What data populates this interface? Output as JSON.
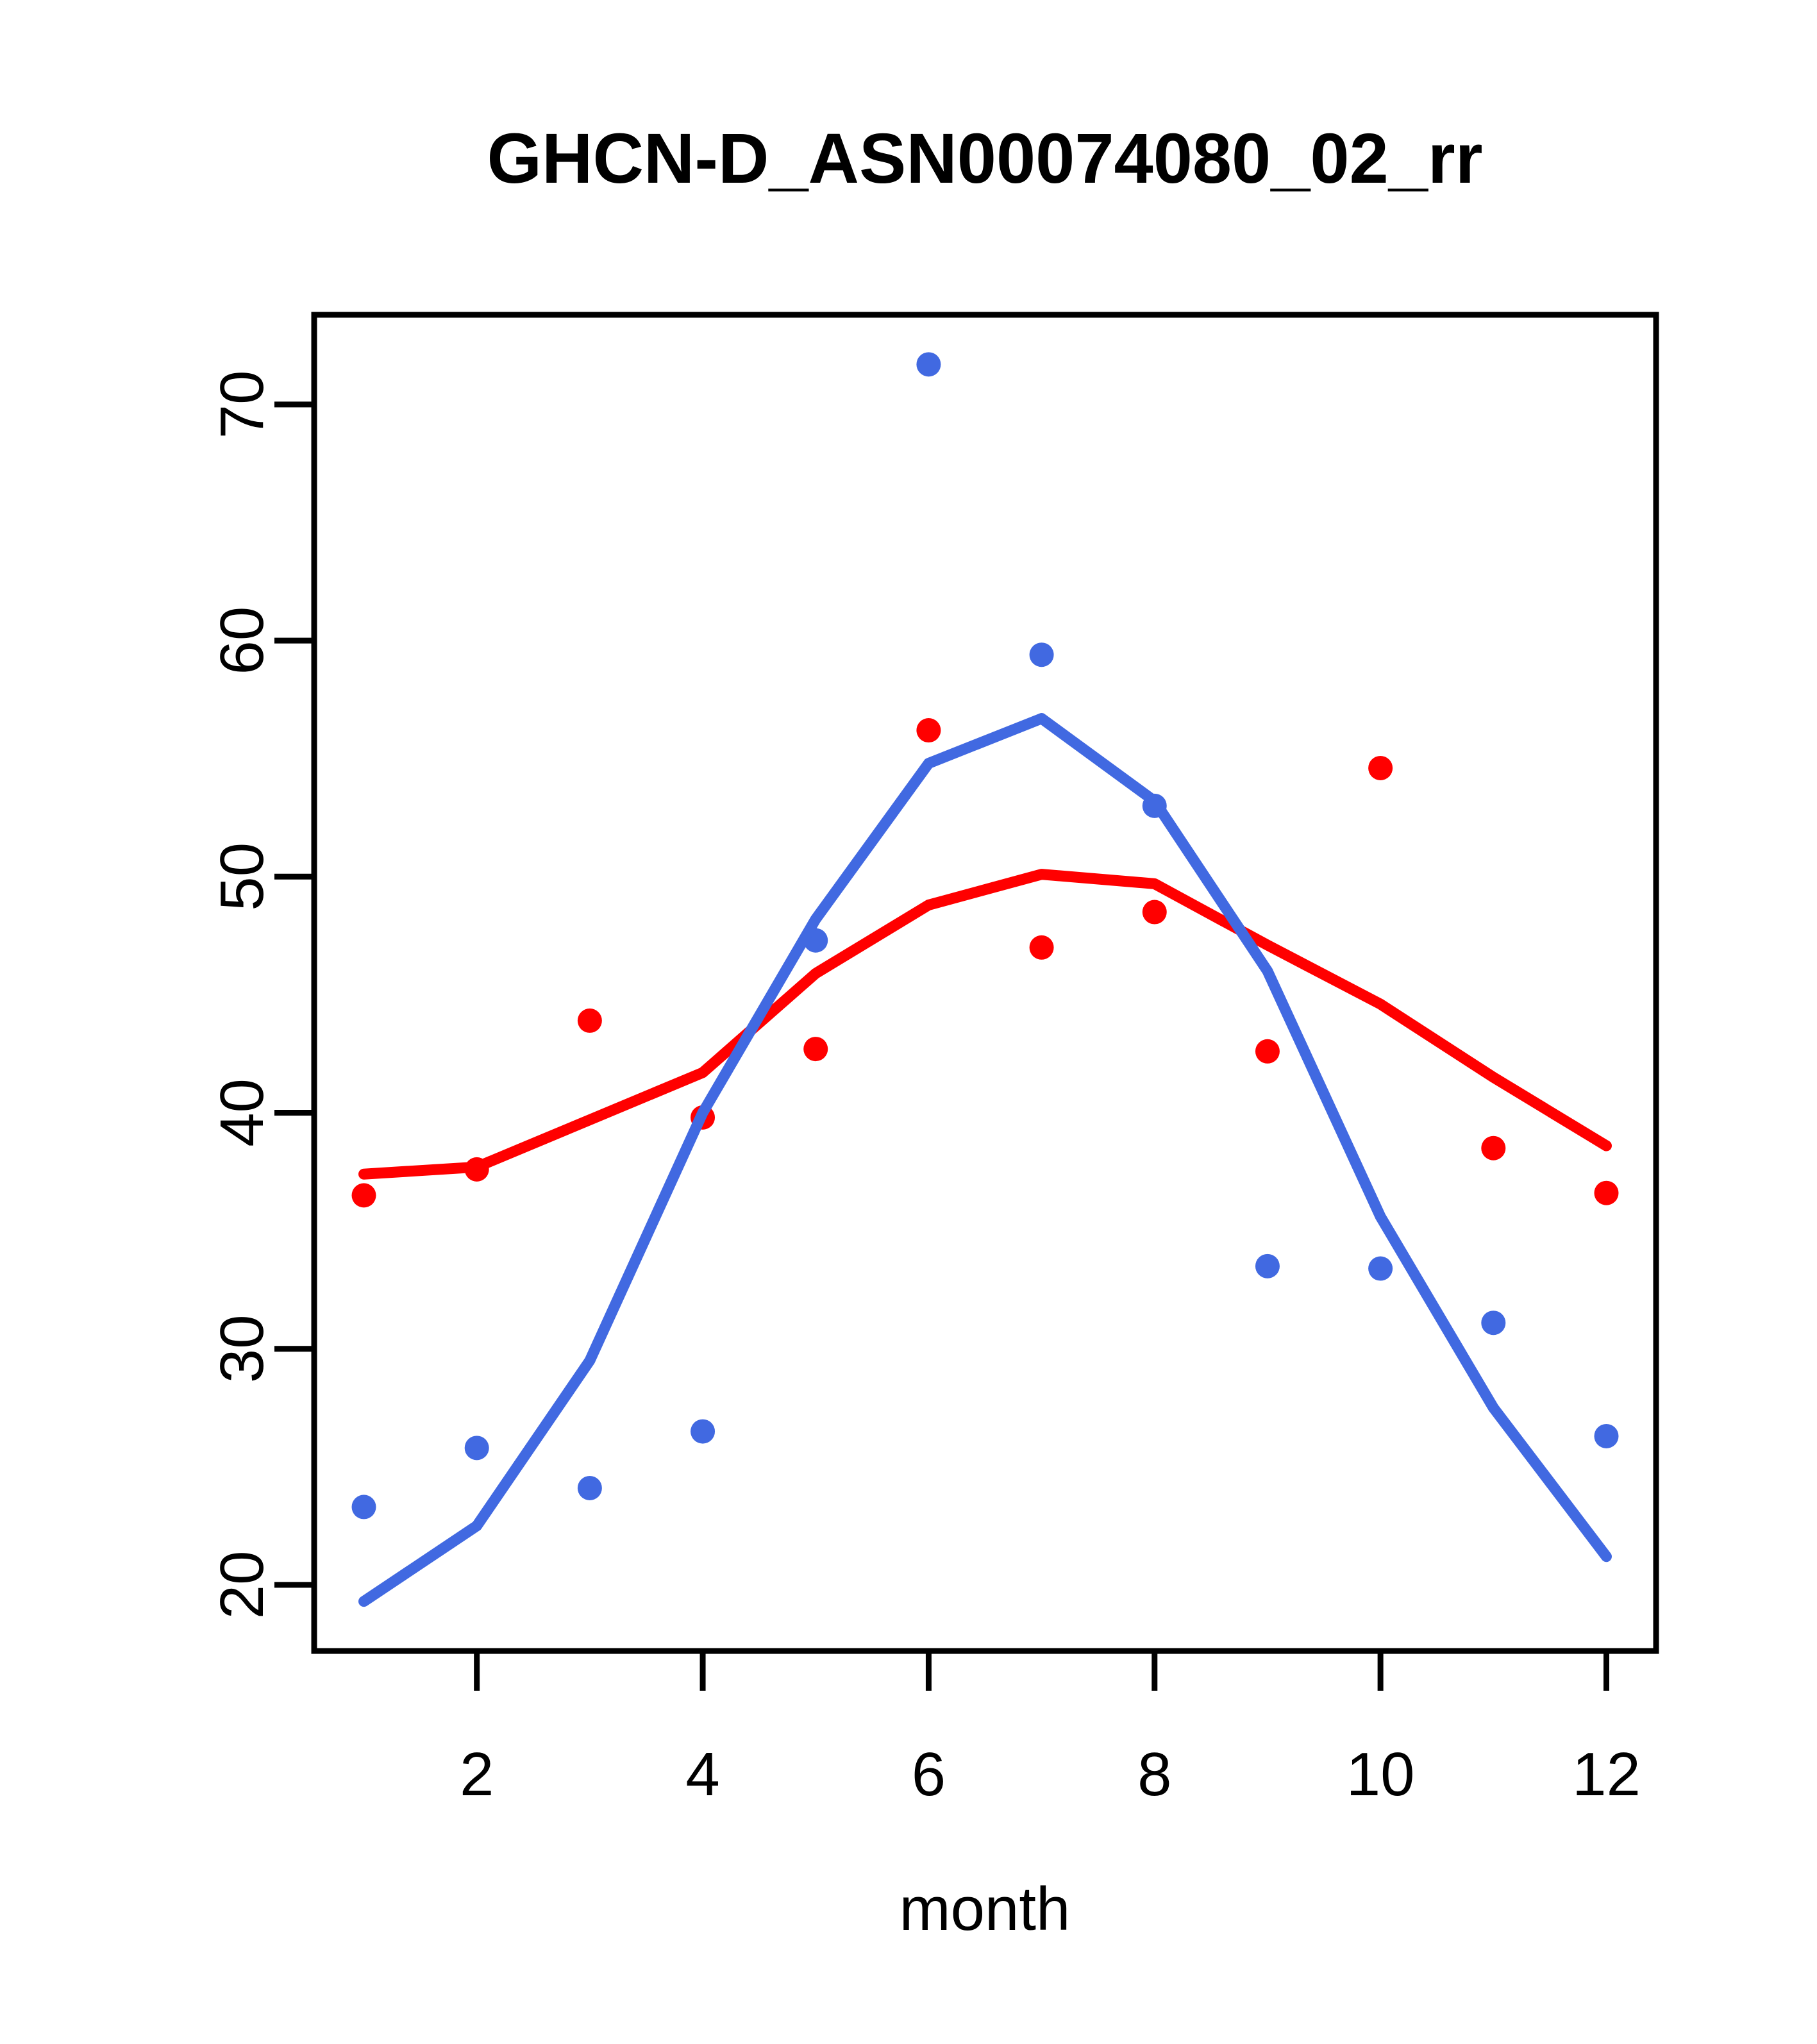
{
  "figure": {
    "background": "#ffffff"
  },
  "chart_data": {
    "type": "scatter",
    "title": "GHCN-D_ASN00074080_02_rr",
    "xlabel": "month",
    "ylabel": "",
    "grid": false,
    "legend": "none",
    "x_ticks": [
      2,
      4,
      6,
      8,
      10,
      12
    ],
    "y_ticks": [
      20,
      30,
      40,
      50,
      60,
      70
    ],
    "x_range": [
      0.56,
      12.44
    ],
    "y_range": [
      17.2,
      73.8
    ],
    "x": [
      1,
      2,
      3,
      4,
      5,
      6,
      7,
      8,
      9,
      10,
      11,
      12
    ],
    "series": [
      {
        "name": "red-points",
        "draw": "points",
        "color_key": "red",
        "values": [
          36.5,
          37.6,
          43.9,
          39.8,
          42.7,
          56.2,
          47.0,
          48.5,
          42.6,
          54.6,
          38.5,
          36.6
        ]
      },
      {
        "name": "blue-points",
        "draw": "points",
        "color_key": "blue",
        "values": [
          23.3,
          25.8,
          24.1,
          26.5,
          47.3,
          71.7,
          59.4,
          53.0,
          33.5,
          33.4,
          31.1,
          26.3
        ]
      },
      {
        "name": "red-smooth-line",
        "draw": "line",
        "color_key": "red",
        "values": [
          37.4,
          37.7,
          39.7,
          41.7,
          45.9,
          48.8,
          50.1,
          49.7,
          47.1,
          44.6,
          41.5,
          38.6
        ]
      },
      {
        "name": "blue-smooth-line",
        "draw": "line",
        "color_key": "blue",
        "values": [
          19.3,
          22.5,
          29.5,
          40.0,
          48.2,
          54.8,
          56.7,
          53.2,
          46.0,
          35.6,
          27.5,
          21.2
        ]
      }
    ],
    "colors": {
      "red": "#ff0000",
      "blue": "#4169e1",
      "axis": "#000000"
    }
  }
}
